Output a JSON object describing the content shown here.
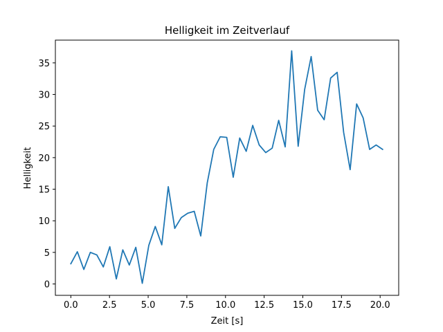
{
  "chart_data": {
    "type": "line",
    "title": "Helligkeit im Zeitverlauf",
    "xlabel": "Zeit [s]",
    "ylabel": "Helligkeit",
    "xlim": [
      -1.0,
      21.2
    ],
    "ylim": [
      -1.8,
      38.6
    ],
    "xticks": [
      0.0,
      2.5,
      5.0,
      7.5,
      10.0,
      12.5,
      15.0,
      17.5,
      20.0
    ],
    "xtick_labels": [
      "0.0",
      "2.5",
      "5.0",
      "7.5",
      "10.0",
      "12.5",
      "15.0",
      "17.5",
      "20.0"
    ],
    "yticks": [
      0,
      5,
      10,
      15,
      20,
      25,
      30,
      35
    ],
    "ytick_labels": [
      "0",
      "5",
      "10",
      "15",
      "20",
      "25",
      "30",
      "35"
    ],
    "grid": false,
    "legend": false,
    "line_color": "#1f77b4",
    "series": [
      {
        "x": [
          0.0,
          0.42,
          0.84,
          1.26,
          1.68,
          2.1,
          2.52,
          2.94,
          3.36,
          3.78,
          4.2,
          4.62,
          5.04,
          5.46,
          5.88,
          6.3,
          6.72,
          7.14,
          7.56,
          7.98,
          8.4,
          8.82,
          9.24,
          9.66,
          10.08,
          10.5,
          10.92,
          11.34,
          11.76,
          12.18,
          12.6,
          13.02,
          13.44,
          13.86,
          14.28,
          14.7,
          15.12,
          15.54,
          15.96,
          16.38,
          16.8,
          17.22,
          17.64,
          18.06,
          18.48,
          18.9,
          19.32,
          19.74,
          20.16
        ],
        "y": [
          3.2,
          5.1,
          2.3,
          5.0,
          4.6,
          2.7,
          5.9,
          0.8,
          5.4,
          3.0,
          5.8,
          0.1,
          6.1,
          9.1,
          6.2,
          15.4,
          8.8,
          10.5,
          11.2,
          11.5,
          7.6,
          16.0,
          21.3,
          23.3,
          23.2,
          16.9,
          23.1,
          21.0,
          25.1,
          22.0,
          20.8,
          21.5,
          25.9,
          21.7,
          36.9,
          21.8,
          30.8,
          36.0,
          27.5,
          26.0,
          32.6,
          33.5,
          24.0,
          18.1,
          28.5,
          26.3,
          21.3,
          22.0,
          21.3
        ]
      }
    ]
  }
}
